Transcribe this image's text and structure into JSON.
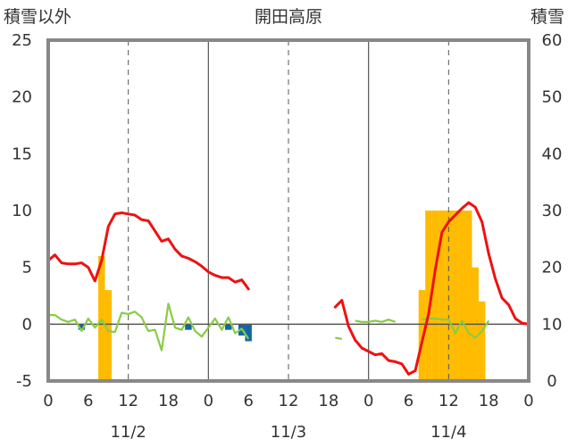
{
  "chart_data": {
    "type": "bar+line",
    "title": "開田高原",
    "left_axis_label": "積雪以外",
    "right_axis_label": "積雪",
    "left_ylim": [
      -5,
      25
    ],
    "left_yticks": [
      "-5",
      "0",
      "5",
      "10",
      "15",
      "20",
      "25"
    ],
    "right_ylim": [
      0,
      60
    ],
    "right_yticks": [
      "0",
      "10",
      "20",
      "30",
      "40",
      "50",
      "60"
    ],
    "x_tick_labels": [
      "0",
      "6",
      "12",
      "18",
      "0",
      "6",
      "12",
      "18",
      "0",
      "6",
      "12",
      "18",
      "0"
    ],
    "date_labels": [
      "11/2",
      "11/3",
      "11/4"
    ],
    "colors": {
      "temperature": "#ee1111",
      "snowfall": "#ffbb00",
      "precipitation": "#1166aa",
      "wind": "#88cc44",
      "snow_depth": "#7744aa",
      "gridline": "#555555",
      "frame": "#888888"
    },
    "series": [
      {
        "key": "temperature",
        "axis": "left",
        "x": [
          0,
          1,
          2,
          3,
          4,
          5,
          6,
          7,
          8,
          9,
          10,
          11,
          12,
          13,
          14,
          15,
          16,
          17,
          18,
          19,
          20,
          21,
          22,
          23,
          24,
          25,
          26,
          27,
          28,
          29,
          30,
          null,
          43,
          44,
          45,
          46,
          47,
          48,
          49,
          50,
          51,
          52,
          53,
          54,
          55,
          56,
          57,
          58,
          59,
          60,
          61,
          62,
          63,
          64,
          65,
          66,
          67,
          68,
          69,
          70,
          71,
          72
        ],
        "y": [
          5.6,
          6.1,
          5.4,
          5.3,
          5.3,
          5.4,
          5.0,
          3.8,
          5.6,
          8.6,
          9.7,
          9.8,
          9.7,
          9.6,
          9.2,
          9.1,
          8.2,
          7.3,
          7.5,
          6.6,
          6.0,
          5.8,
          5.5,
          5.1,
          4.6,
          4.3,
          4.1,
          4.1,
          3.7,
          3.9,
          3.1,
          null,
          1.5,
          2.1,
          -0.2,
          -1.4,
          -2.1,
          -2.4,
          -2.7,
          -2.6,
          -3.2,
          -3.3,
          -3.5,
          -4.4,
          -4.1,
          -1.6,
          0.9,
          4.8,
          8.1,
          9.0,
          9.6,
          10.2,
          10.7,
          10.3,
          9.0,
          6.2,
          4.0,
          2.3,
          1.7,
          0.5,
          0.1,
          0.0
        ]
      },
      {
        "key": "snowfall",
        "axis": "right",
        "bars": [
          {
            "x": 8,
            "v": 22
          },
          {
            "x": 9,
            "v": 16
          },
          {
            "x": 56,
            "v": 16
          },
          {
            "x": 57,
            "v": 30
          },
          {
            "x": 58,
            "v": 30
          },
          {
            "x": 59,
            "v": 30
          },
          {
            "x": 60,
            "v": 30
          },
          {
            "x": 61,
            "v": 30
          },
          {
            "x": 62,
            "v": 30
          },
          {
            "x": 63,
            "v": 30
          },
          {
            "x": 64,
            "v": 20
          },
          {
            "x": 65,
            "v": 14
          }
        ]
      },
      {
        "key": "precipitation",
        "axis": "left",
        "bars": [
          {
            "x": 5,
            "v": -0.5
          },
          {
            "x": 21,
            "v": -0.5
          },
          {
            "x": 27,
            "v": -0.5
          },
          {
            "x": 29,
            "v": -1.0
          },
          {
            "x": 30,
            "v": -1.5
          }
        ]
      },
      {
        "key": "wind",
        "axis": "left",
        "x": [
          0,
          1,
          2,
          3,
          4,
          5,
          6,
          7,
          8,
          9,
          10,
          11,
          12,
          13,
          14,
          15,
          16,
          17,
          18,
          19,
          20,
          21,
          22,
          23,
          24,
          25,
          26,
          27,
          28,
          29,
          30,
          null,
          43,
          44,
          null,
          46,
          47,
          48,
          49,
          50,
          51,
          52,
          null,
          56,
          57,
          58,
          59,
          60,
          61,
          62,
          63,
          64,
          65,
          66
        ],
        "y": [
          0.8,
          0.8,
          0.4,
          0.2,
          0.4,
          -0.6,
          0.5,
          -0.3,
          0.4,
          -0.6,
          -0.7,
          1.0,
          0.9,
          1.1,
          0.6,
          -0.6,
          -0.5,
          -2.3,
          1.8,
          -0.3,
          -0.5,
          0.6,
          -0.6,
          -1.1,
          -0.3,
          0.5,
          -0.5,
          0.6,
          -0.8,
          -0.4,
          -1.3,
          null,
          -1.2,
          -1.3,
          null,
          0.3,
          0.2,
          0.2,
          0.3,
          0.2,
          0.4,
          0.2,
          null,
          0.4,
          0.5,
          0.5,
          0.4,
          0.4,
          -0.8,
          0.3,
          -0.8,
          -1.2,
          -0.6,
          0.3
        ]
      },
      {
        "key": "snow_depth",
        "axis": "right",
        "x": [
          0,
          72
        ],
        "y": [
          0,
          0
        ]
      }
    ]
  }
}
